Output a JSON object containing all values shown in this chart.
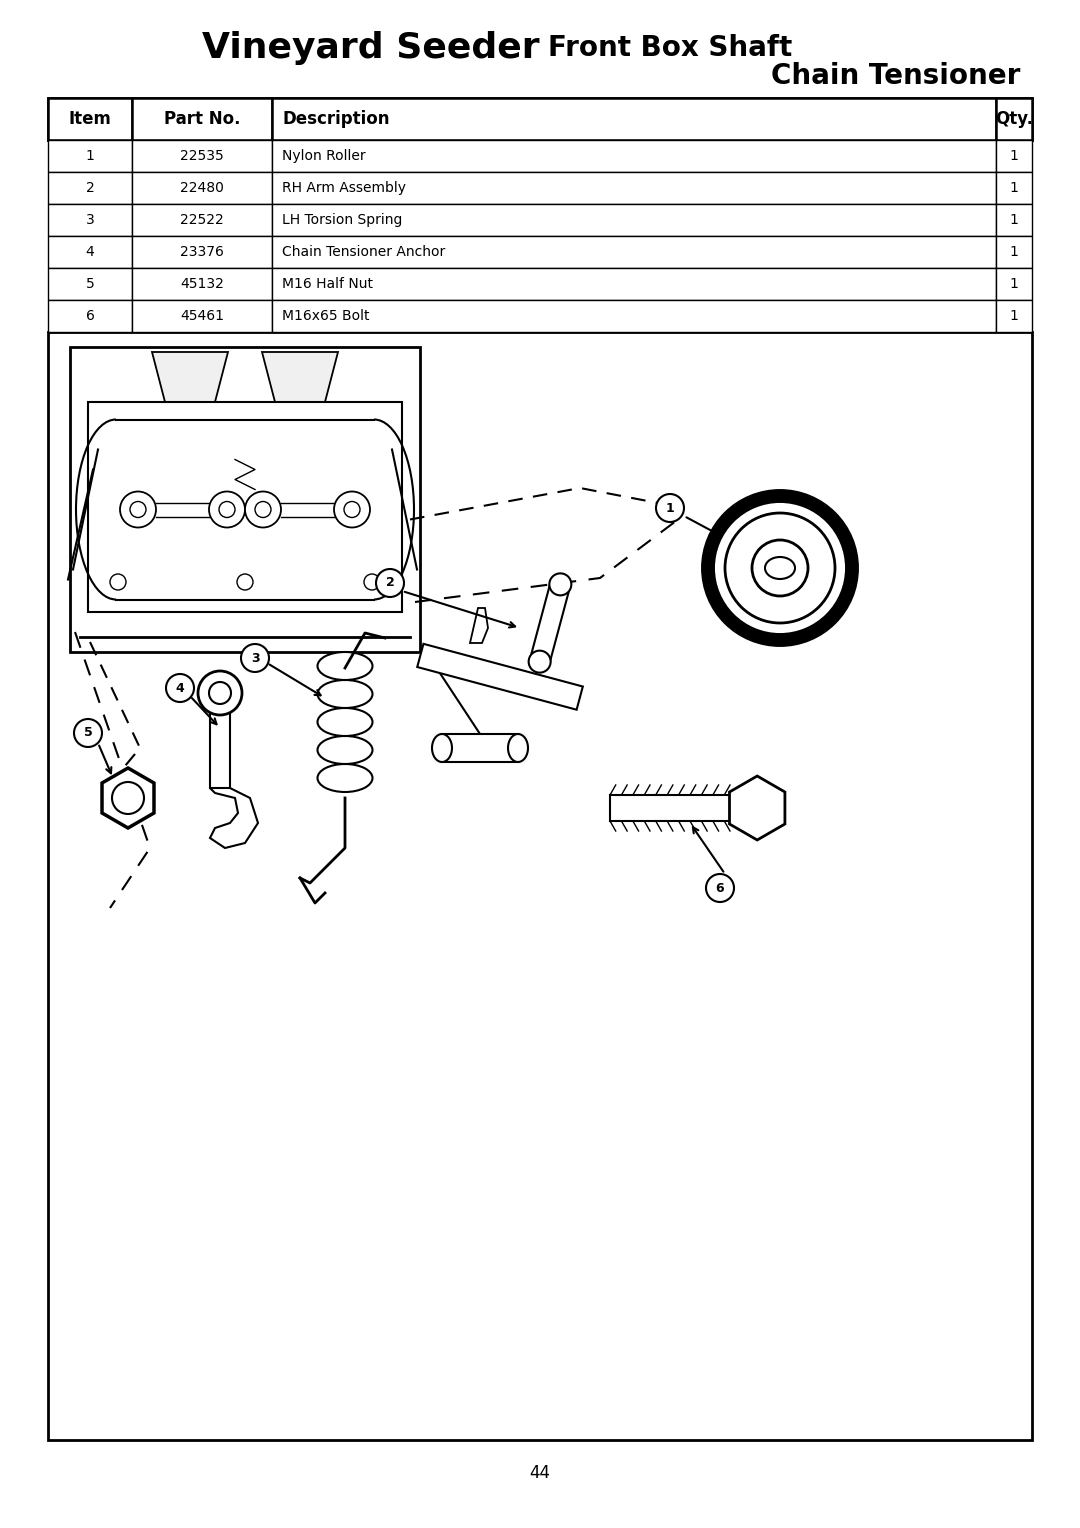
{
  "title_bold": "Vineyard Seeder",
  "title_normal": " Front Box Shaft",
  "subtitle": "Chain Tensioner",
  "page_number": "44",
  "bg_color": "#ffffff",
  "table_headers": [
    "Item",
    "Part No.",
    "Description",
    "Qty."
  ],
  "table_rows": [
    [
      "1",
      "22535",
      "Nylon Roller",
      "1"
    ],
    [
      "2",
      "22480",
      "RH Arm Assembly",
      "1"
    ],
    [
      "3",
      "22522",
      "LH Torsion Spring",
      "1"
    ],
    [
      "4",
      "23376",
      "Chain Tensioner Anchor",
      "1"
    ],
    [
      "5",
      "45132",
      "M16 Half Nut",
      "1"
    ],
    [
      "6",
      "45461",
      "M16x65 Bolt",
      "1"
    ]
  ]
}
